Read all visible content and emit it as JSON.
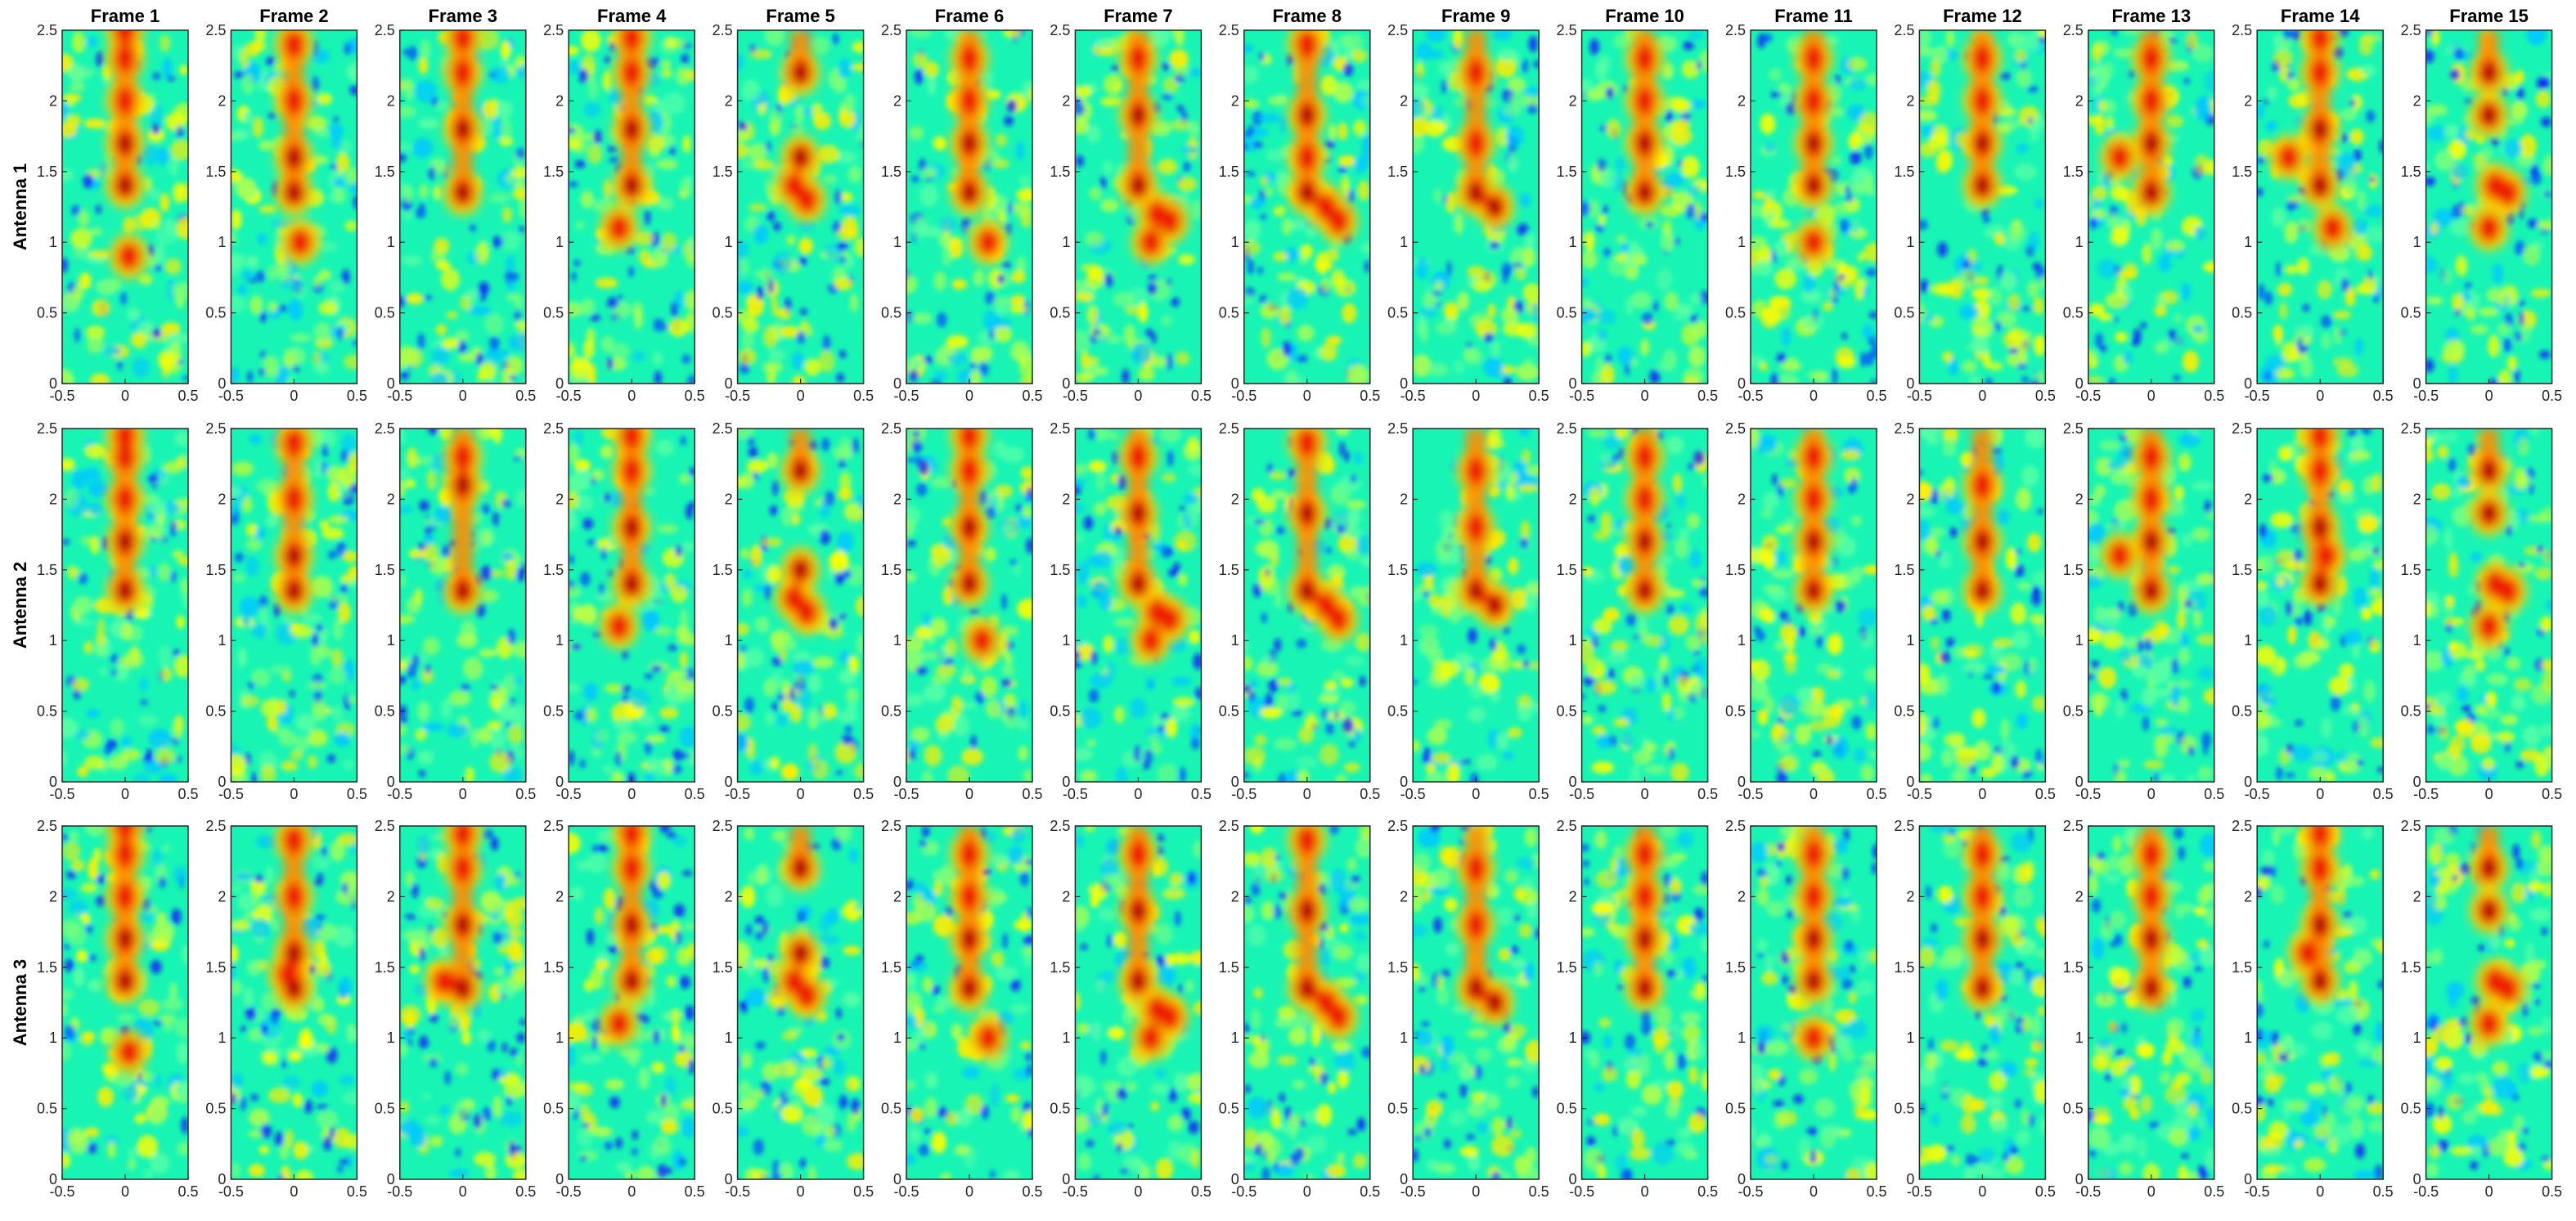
{
  "chart_data": {
    "type": "heatmap",
    "colormap": "jet",
    "grid": false,
    "column_titles": [
      "Frame 1",
      "Frame 2",
      "Frame 3",
      "Frame 4",
      "Frame 5",
      "Frame 6",
      "Frame 7",
      "Frame 8",
      "Frame 9",
      "Frame 10",
      "Frame 11",
      "Frame 12",
      "Frame 13",
      "Frame 14",
      "Frame 15"
    ],
    "row_labels": [
      "Antenna 1",
      "Antenna 2",
      "Antenna 3"
    ],
    "x_ticks": [
      "-0.5",
      "0",
      "0.5"
    ],
    "y_ticks": [
      "0",
      "0.5",
      "1",
      "1.5",
      "2",
      "2.5"
    ],
    "xlim": [
      -0.5,
      0.5
    ],
    "ylim": [
      0,
      2.5
    ],
    "hot_blobs": [
      [
        [
          [
            0,
            1.4
          ],
          [
            0,
            1.7
          ],
          [
            0,
            2.0
          ],
          [
            0,
            2.3
          ],
          [
            0,
            2.5
          ],
          [
            0.03,
            0.9
          ]
        ],
        [
          [
            0,
            1.35
          ],
          [
            0,
            1.6
          ],
          [
            0,
            2.0
          ],
          [
            0,
            2.4
          ],
          [
            0.05,
            1.0
          ]
        ],
        [
          [
            0,
            1.35
          ],
          [
            0,
            1.8
          ],
          [
            0,
            2.2
          ],
          [
            0,
            2.45
          ]
        ],
        [
          [
            0,
            1.4
          ],
          [
            0,
            1.8
          ],
          [
            0,
            2.2
          ],
          [
            0,
            2.45
          ],
          [
            -0.1,
            1.1
          ]
        ],
        [
          [
            0,
            2.2
          ],
          [
            0,
            1.6
          ],
          [
            -0.05,
            1.4
          ],
          [
            0.05,
            1.3
          ]
        ],
        [
          [
            0,
            1.35
          ],
          [
            0,
            1.7
          ],
          [
            0,
            2.0
          ],
          [
            0,
            2.3
          ],
          [
            0.15,
            1.0
          ]
        ],
        [
          [
            0,
            1.4
          ],
          [
            0,
            1.9
          ],
          [
            0,
            2.3
          ],
          [
            0.15,
            1.2
          ],
          [
            0.25,
            1.15
          ],
          [
            0.1,
            1.0
          ]
        ],
        [
          [
            0,
            1.35
          ],
          [
            0,
            1.9
          ],
          [
            0,
            2.4
          ],
          [
            0.15,
            1.25
          ],
          [
            0.25,
            1.15
          ],
          [
            0,
            1.6
          ]
        ],
        [
          [
            0,
            1.35
          ],
          [
            0.15,
            1.25
          ],
          [
            0,
            1.7
          ],
          [
            0,
            2.2
          ]
        ],
        [
          [
            0,
            1.35
          ],
          [
            0,
            1.7
          ],
          [
            0,
            2.0
          ],
          [
            0,
            2.3
          ]
        ],
        [
          [
            0,
            1.4
          ],
          [
            0,
            1.7
          ],
          [
            0,
            2.0
          ],
          [
            0,
            2.3
          ],
          [
            0,
            1.0
          ]
        ],
        [
          [
            0,
            1.4
          ],
          [
            0,
            1.7
          ],
          [
            0,
            2.0
          ],
          [
            0,
            2.3
          ]
        ],
        [
          [
            0,
            1.35
          ],
          [
            0,
            1.7
          ],
          [
            0,
            2.0
          ],
          [
            0,
            2.3
          ],
          [
            -0.25,
            1.6
          ]
        ],
        [
          [
            0,
            1.4
          ],
          [
            0,
            1.8
          ],
          [
            0,
            2.2
          ],
          [
            0,
            2.45
          ],
          [
            -0.25,
            1.6
          ],
          [
            0.1,
            1.1
          ]
        ],
        [
          [
            0,
            2.2
          ],
          [
            0,
            1.9
          ],
          [
            0.05,
            1.4
          ],
          [
            0.15,
            1.35
          ],
          [
            0,
            1.1
          ]
        ]
      ],
      [
        [
          [
            0,
            1.35
          ],
          [
            0,
            1.7
          ],
          [
            0,
            2.0
          ],
          [
            0,
            2.3
          ],
          [
            0,
            2.45
          ]
        ],
        [
          [
            0,
            1.35
          ],
          [
            0,
            1.6
          ],
          [
            0,
            2.0
          ],
          [
            0,
            2.4
          ]
        ],
        [
          [
            0,
            1.35
          ],
          [
            0,
            2.1
          ],
          [
            0,
            2.3
          ]
        ],
        [
          [
            0,
            1.4
          ],
          [
            0,
            1.8
          ],
          [
            0,
            2.2
          ],
          [
            0,
            2.45
          ],
          [
            -0.1,
            1.1
          ]
        ],
        [
          [
            0,
            2.2
          ],
          [
            0,
            1.5
          ],
          [
            -0.05,
            1.3
          ],
          [
            0.05,
            1.2
          ]
        ],
        [
          [
            0,
            1.4
          ],
          [
            0,
            1.8
          ],
          [
            0,
            2.2
          ],
          [
            0,
            2.45
          ],
          [
            0.1,
            1.0
          ]
        ],
        [
          [
            0,
            1.4
          ],
          [
            0,
            1.9
          ],
          [
            0,
            2.3
          ],
          [
            0.15,
            1.2
          ],
          [
            0.25,
            1.15
          ],
          [
            0.1,
            1.0
          ]
        ],
        [
          [
            0,
            1.35
          ],
          [
            0,
            1.9
          ],
          [
            0,
            2.4
          ],
          [
            0.15,
            1.25
          ],
          [
            0.25,
            1.15
          ]
        ],
        [
          [
            0,
            1.35
          ],
          [
            0.15,
            1.25
          ],
          [
            0,
            1.8
          ],
          [
            0,
            2.2
          ]
        ],
        [
          [
            0,
            1.35
          ],
          [
            0,
            1.7
          ],
          [
            0,
            2.0
          ],
          [
            0,
            2.3
          ]
        ],
        [
          [
            0,
            1.35
          ],
          [
            0,
            1.7
          ],
          [
            0,
            2.0
          ],
          [
            0,
            2.3
          ]
        ],
        [
          [
            0,
            1.35
          ],
          [
            0,
            1.7
          ],
          [
            0,
            2.1
          ]
        ],
        [
          [
            0,
            1.35
          ],
          [
            0,
            1.7
          ],
          [
            0,
            2.0
          ],
          [
            0,
            2.3
          ],
          [
            -0.25,
            1.6
          ]
        ],
        [
          [
            0,
            1.4
          ],
          [
            0,
            1.8
          ],
          [
            0,
            2.2
          ],
          [
            0,
            2.45
          ],
          [
            0.05,
            1.6
          ]
        ],
        [
          [
            0,
            2.2
          ],
          [
            0,
            1.9
          ],
          [
            0.05,
            1.4
          ],
          [
            0.15,
            1.35
          ],
          [
            0,
            1.1
          ]
        ]
      ],
      [
        [
          [
            0,
            1.4
          ],
          [
            0,
            1.7
          ],
          [
            0,
            2.0
          ],
          [
            0,
            2.3
          ],
          [
            0,
            2.5
          ],
          [
            0.03,
            0.9
          ]
        ],
        [
          [
            0,
            1.35
          ],
          [
            0,
            1.6
          ],
          [
            0,
            2.0
          ],
          [
            0,
            2.4
          ],
          [
            -0.05,
            1.45
          ]
        ],
        [
          [
            0,
            1.35
          ],
          [
            0,
            1.8
          ],
          [
            0,
            2.2
          ],
          [
            0,
            2.45
          ],
          [
            -0.15,
            1.4
          ]
        ],
        [
          [
            0,
            1.4
          ],
          [
            0,
            1.8
          ],
          [
            0,
            2.2
          ],
          [
            0,
            2.45
          ],
          [
            -0.1,
            1.1
          ]
        ],
        [
          [
            0,
            2.2
          ],
          [
            0,
            1.6
          ],
          [
            -0.05,
            1.4
          ],
          [
            0.05,
            1.3
          ]
        ],
        [
          [
            0,
            1.35
          ],
          [
            0,
            1.7
          ],
          [
            0,
            2.0
          ],
          [
            0,
            2.3
          ],
          [
            0.15,
            1.0
          ]
        ],
        [
          [
            0,
            1.4
          ],
          [
            0,
            1.9
          ],
          [
            0,
            2.3
          ],
          [
            0.15,
            1.2
          ],
          [
            0.25,
            1.15
          ],
          [
            0.1,
            1.0
          ]
        ],
        [
          [
            0,
            1.35
          ],
          [
            0,
            1.9
          ],
          [
            0,
            2.4
          ],
          [
            0.15,
            1.25
          ],
          [
            0.25,
            1.15
          ]
        ],
        [
          [
            0,
            1.35
          ],
          [
            0.15,
            1.25
          ],
          [
            0,
            1.8
          ],
          [
            0,
            2.2
          ]
        ],
        [
          [
            0,
            1.35
          ],
          [
            0,
            1.7
          ],
          [
            0,
            2.0
          ],
          [
            0,
            2.3
          ]
        ],
        [
          [
            0,
            1.4
          ],
          [
            0,
            1.7
          ],
          [
            0,
            2.0
          ],
          [
            0,
            2.3
          ],
          [
            0,
            1.0
          ]
        ],
        [
          [
            0,
            1.35
          ],
          [
            0,
            1.7
          ],
          [
            0,
            2.0
          ],
          [
            0,
            2.3
          ]
        ],
        [
          [
            0,
            1.35
          ],
          [
            0,
            1.7
          ],
          [
            0,
            2.0
          ],
          [
            0,
            2.3
          ]
        ],
        [
          [
            0,
            1.4
          ],
          [
            0,
            1.8
          ],
          [
            0,
            2.2
          ],
          [
            0,
            2.45
          ],
          [
            -0.1,
            1.6
          ]
        ],
        [
          [
            0,
            2.2
          ],
          [
            0,
            1.9
          ],
          [
            0.05,
            1.4
          ],
          [
            0.15,
            1.35
          ],
          [
            0,
            1.1
          ]
        ]
      ]
    ]
  }
}
